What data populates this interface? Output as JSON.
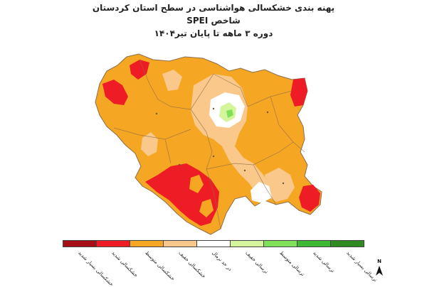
{
  "title": {
    "line1": "پهنه بندی خشکسالی هواشناسی در سطح استان کردستان",
    "line2": "شاخص SPEI",
    "line3": "دوره  ۳  ماهه تا پایان  تیر۱۴۰۴"
  },
  "colors": {
    "severe_drought_extreme": "#a50f15",
    "severe_drought": "#ee1c24",
    "moderate_drought": "#f5a623",
    "mild_drought": "#f9c88a",
    "normal": "#ffffff",
    "mild_wet": "#d4f59b",
    "moderate_wet": "#7fe05a",
    "severe_wet": "#3cb832",
    "extreme_wet": "#2e8b1f",
    "map_border": "#8c6e4a",
    "county_line": "#8c6e4a"
  },
  "legend": [
    {
      "label": "خشکسالی بسیار شدید",
      "color": "#a50f15"
    },
    {
      "label": "خشکسالی شدید",
      "color": "#ee1c24"
    },
    {
      "label": "خشکسالی متوسط",
      "color": "#f5a623"
    },
    {
      "label": "خشکسالی خفیف",
      "color": "#f9c88a"
    },
    {
      "label": "در حد نرمال",
      "color": "#ffffff"
    },
    {
      "label": "ترسالی خفیف",
      "color": "#d4f59b"
    },
    {
      "label": "ترسالی متوسط",
      "color": "#7fe05a"
    },
    {
      "label": "ترسالی شدید",
      "color": "#3cb832"
    },
    {
      "label": "ترسالی بسیار شدید",
      "color": "#2e8b1f"
    }
  ],
  "north_arrow": {
    "label": "N"
  }
}
